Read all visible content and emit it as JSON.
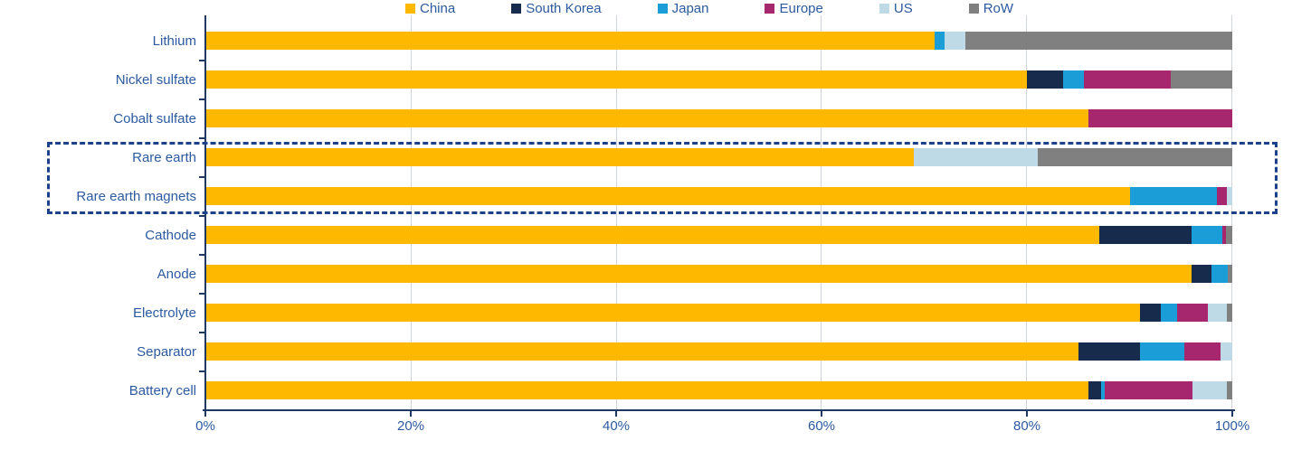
{
  "chart_data": {
    "type": "bar",
    "orientation": "horizontal",
    "stacked": true,
    "unit": "percent share",
    "title": "",
    "categories": [
      "Lithium",
      "Nickel sulfate",
      "Cobalt sulfate",
      "Rare earth",
      "Rare earth magnets",
      "Cathode",
      "Anode",
      "Electrolyte",
      "Separator",
      "Battery cell"
    ],
    "series": [
      {
        "name": "China",
        "color": "#FFB800",
        "values": [
          71,
          80,
          86,
          69,
          90,
          87,
          96,
          91,
          85,
          86
        ]
      },
      {
        "name": "South Korea",
        "color": "#172B4D",
        "values": [
          0,
          3.5,
          0,
          0,
          0,
          9,
          2,
          2,
          6,
          1.2
        ]
      },
      {
        "name": "Japan",
        "color": "#1B9DD7",
        "values": [
          1,
          2,
          0,
          0,
          8.5,
          3,
          1.6,
          1.6,
          4.3,
          0.4
        ]
      },
      {
        "name": "Europe",
        "color": "#A6276D",
        "values": [
          0,
          8.5,
          14,
          0,
          1,
          0.4,
          0,
          3,
          3.6,
          8.5
        ]
      },
      {
        "name": "US",
        "color": "#BEDAE6",
        "values": [
          2,
          0,
          0,
          12,
          0.5,
          0,
          0,
          1.9,
          1.1,
          3.4
        ]
      },
      {
        "name": "RoW",
        "color": "#808080",
        "values": [
          26,
          6,
          0,
          19,
          0,
          0.6,
          0.4,
          0.5,
          0,
          0.5
        ]
      }
    ],
    "x_axis": {
      "range": [
        0,
        100
      ],
      "tick_step": 20,
      "ticks": [
        "0%",
        "20%",
        "40%",
        "60%",
        "80%",
        "100%"
      ]
    },
    "legend": {
      "position": "top",
      "entries": [
        "China",
        "South Korea",
        "Japan",
        "Europe",
        "US",
        "RoW"
      ]
    },
    "grid": "vertical-light-gray",
    "highlight": {
      "type": "dashed-box",
      "categories": [
        "Rare earth",
        "Rare earth magnets"
      ]
    }
  },
  "colors": {
    "label_blue": "#2C5AA0",
    "axis_navy": "#203864",
    "grid": "#D0D5DD",
    "highlight_navy": "#1D4289",
    "background": "#FFFFFF"
  }
}
